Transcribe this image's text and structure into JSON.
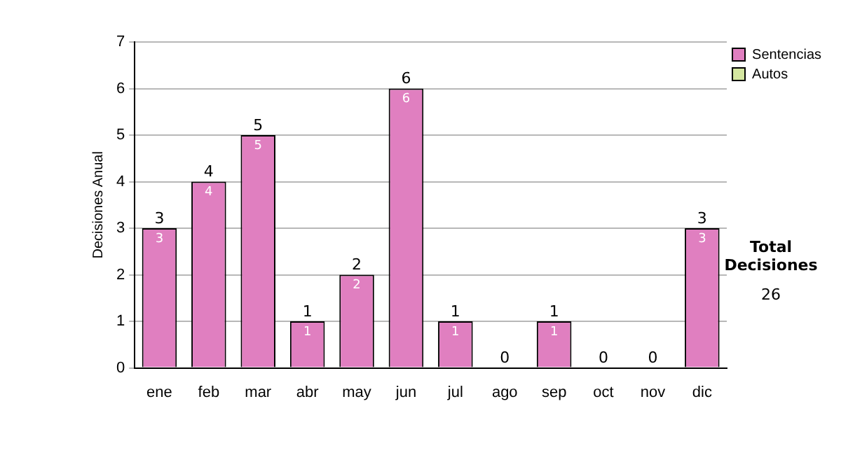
{
  "chart_data": {
    "type": "bar",
    "ylabel": "Decisiones Anual",
    "stacked": true,
    "legend": "right",
    "grid": "y",
    "categories": [
      "ene",
      "feb",
      "mar",
      "abr",
      "may",
      "jun",
      "jul",
      "ago",
      "sep",
      "oct",
      "nov",
      "dic"
    ],
    "series": [
      {
        "name": "Sentencias",
        "color": "#e07fc0",
        "values": [
          3,
          4,
          5,
          1,
          2,
          6,
          1,
          0,
          1,
          0,
          0,
          3
        ],
        "value_labels": [
          "3",
          "4",
          "5",
          "1",
          "2",
          "6",
          "1",
          null,
          "1",
          null,
          null,
          "3"
        ]
      },
      {
        "name": "Autos",
        "color": "#d4e6a0",
        "values": [
          0,
          0,
          0,
          0,
          0,
          0,
          0,
          0,
          0,
          0,
          0,
          0
        ]
      }
    ],
    "totals": [
      "3",
      "4",
      "5",
      "1",
      "2",
      "6",
      "1",
      "0",
      "1",
      "0",
      "0",
      "3"
    ],
    "ylim": [
      0,
      7
    ],
    "yticks": [
      0,
      1,
      2,
      3,
      4,
      5,
      6,
      7
    ],
    "annotations": [
      "Total Decisiones",
      "26"
    ]
  }
}
